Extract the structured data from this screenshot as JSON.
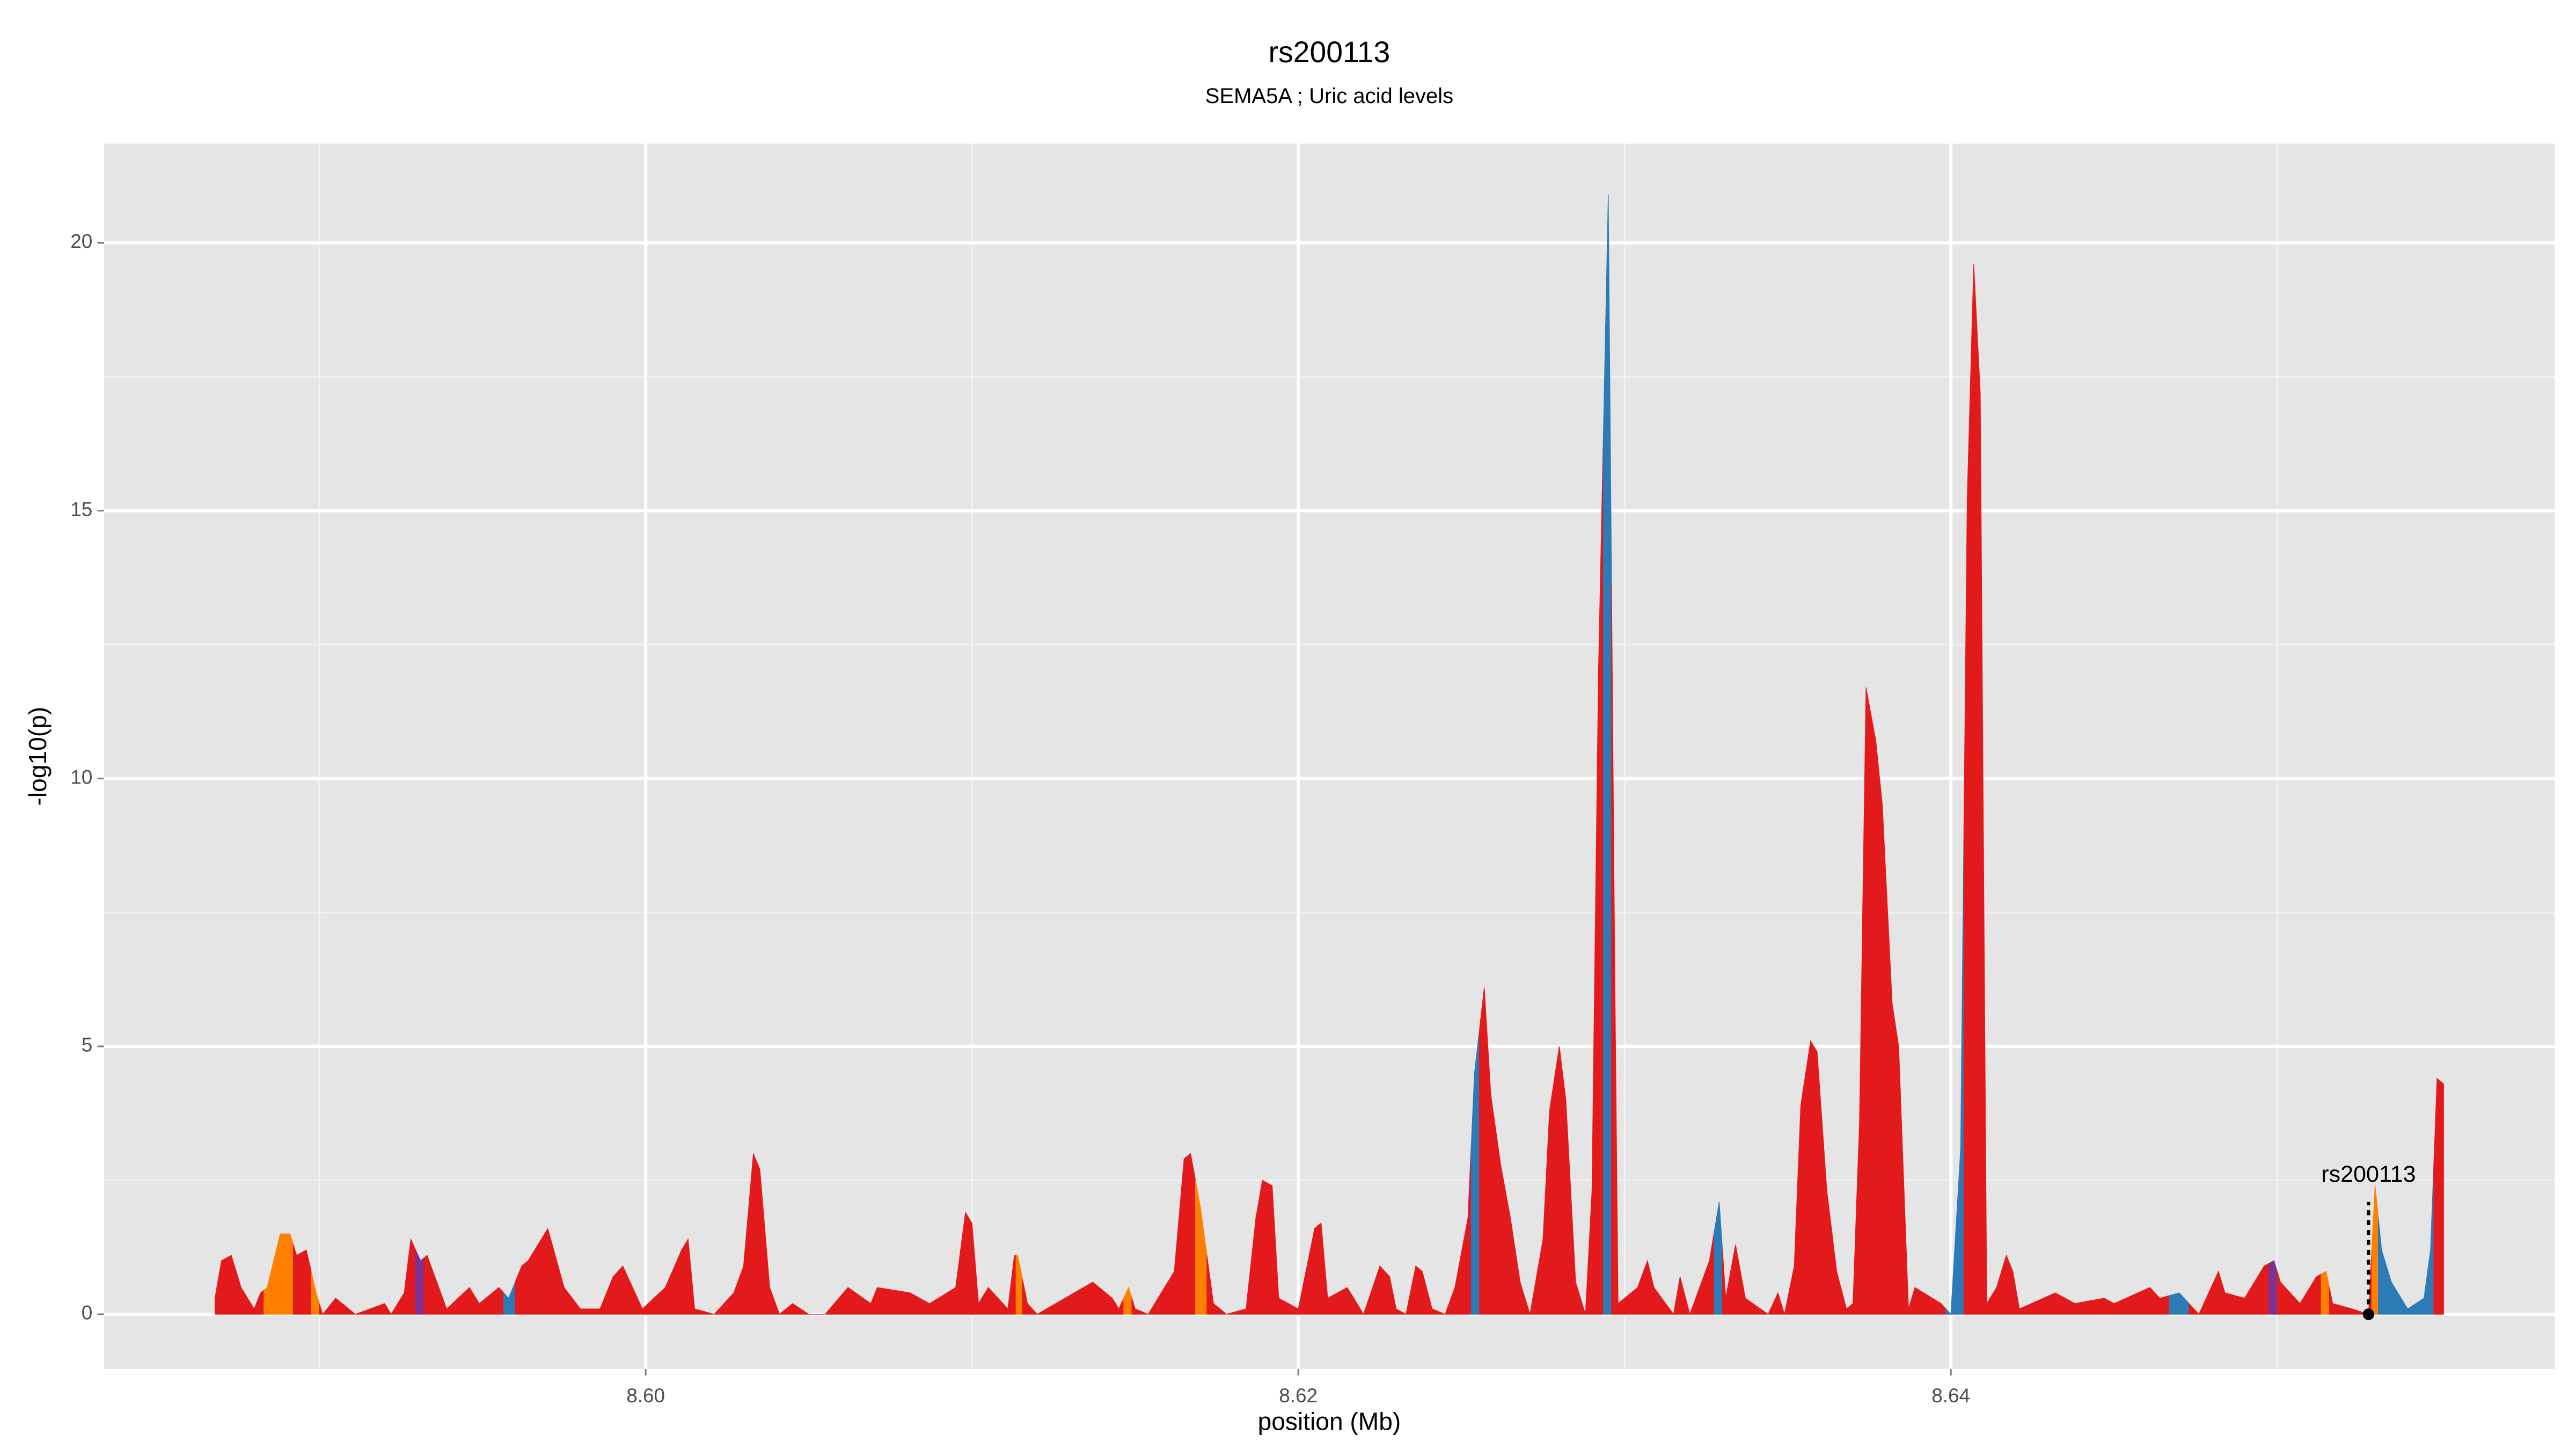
{
  "chart_data": {
    "type": "area",
    "title": "rs200113",
    "subtitle": "SEMA5A ; Uric acid levels",
    "x_label": "position (Mb)",
    "y_label": "-log10(p)",
    "xlim": [
      8.5834,
      8.6585
    ],
    "ylim": [
      -1.02,
      21.85
    ],
    "xticks": [
      {
        "value": 8.6,
        "label": "8.60"
      },
      8.62,
      8.64
    ],
    "yticks": [
      0,
      5,
      10,
      15,
      20
    ],
    "grid": true,
    "x": [
      8.5868,
      8.587,
      8.5873,
      8.5876,
      8.588,
      8.5882,
      8.5884,
      8.5888,
      8.5891,
      8.5893,
      8.5896,
      8.5899,
      8.5901,
      8.5905,
      8.5911,
      8.592,
      8.5922,
      8.5926,
      8.5928,
      8.5931,
      8.5933,
      8.5936,
      8.5939,
      8.5946,
      8.5949,
      8.5955,
      8.5958,
      8.5962,
      8.5964,
      8.597,
      8.5975,
      8.598,
      8.5986,
      8.599,
      8.5993,
      8.5999,
      8.6006,
      8.6011,
      8.6013,
      8.6015,
      8.6021,
      8.6027,
      8.603,
      8.6033,
      8.6035,
      8.6038,
      8.6041,
      8.6045,
      8.605,
      8.6055,
      8.6062,
      8.6069,
      8.6071,
      8.6081,
      8.6087,
      8.6095,
      8.6098,
      8.61,
      8.6102,
      8.6105,
      8.6111,
      8.6113,
      8.6114,
      8.6117,
      8.612,
      8.6137,
      8.6143,
      8.6145,
      8.6148,
      8.615,
      8.6154,
      8.6162,
      8.6165,
      8.6167,
      8.617,
      8.6174,
      8.6178,
      8.6184,
      8.6187,
      8.6189,
      8.6192,
      8.6194,
      8.62,
      8.6205,
      8.6207,
      8.6209,
      8.6215,
      8.622,
      8.6225,
      8.6228,
      8.623,
      8.6233,
      8.6236,
      8.6238,
      8.6241,
      8.6245,
      8.6248,
      8.6252,
      8.6254,
      8.6257,
      8.6259,
      8.6262,
      8.6265,
      8.6268,
      8.6271,
      8.6275,
      8.6277,
      8.628,
      8.6282,
      8.6285,
      8.6288,
      8.629,
      8.6292,
      8.6295,
      8.6297,
      8.6298,
      8.6304,
      8.6307,
      8.6309,
      8.6315,
      8.6317,
      8.632,
      8.6326,
      8.6329,
      8.6331,
      8.6334,
      8.6337,
      8.6344,
      8.6347,
      8.6349,
      8.6352,
      8.6354,
      8.6357,
      8.6359,
      8.6362,
      8.6365,
      8.6368,
      8.637,
      8.6372,
      8.6374,
      8.6377,
      8.6379,
      8.6382,
      8.6384,
      8.6387,
      8.6389,
      8.6397,
      8.64,
      8.6403,
      8.6405,
      8.6407,
      8.6409,
      8.6411,
      8.6414,
      8.6417,
      8.6419,
      8.6421,
      8.6432,
      8.6438,
      8.6447,
      8.645,
      8.6461,
      8.6464,
      8.647,
      8.6476,
      8.6482,
      8.6484,
      8.649,
      8.6496,
      8.6499,
      8.6501,
      8.6507,
      8.6512,
      8.6515,
      8.6517,
      8.6523,
      8.6528,
      8.653,
      8.6532,
      8.6535,
      8.654,
      8.6545,
      8.6547,
      8.6549,
      8.6551
    ],
    "values": [
      0.3,
      1.0,
      1.1,
      0.5,
      0.1,
      0.4,
      0.5,
      1.5,
      1.5,
      1.1,
      1.2,
      0.4,
      0.0,
      0.3,
      0.0,
      0.2,
      0.0,
      0.4,
      1.4,
      1.0,
      1.1,
      0.6,
      0.1,
      0.5,
      0.2,
      0.5,
      0.3,
      0.9,
      1.0,
      1.6,
      0.5,
      0.1,
      0.1,
      0.7,
      0.9,
      0.1,
      0.5,
      1.2,
      1.4,
      0.1,
      0.0,
      0.4,
      0.9,
      3.0,
      2.7,
      0.5,
      0.0,
      0.2,
      0.0,
      0.0,
      0.5,
      0.2,
      0.5,
      0.4,
      0.2,
      0.5,
      1.9,
      1.7,
      0.2,
      0.5,
      0.1,
      1.1,
      1.1,
      0.2,
      0.0,
      0.6,
      0.3,
      0.1,
      0.5,
      0.1,
      0.0,
      0.8,
      2.9,
      3.0,
      2.0,
      0.2,
      0.0,
      0.1,
      1.8,
      2.5,
      2.4,
      0.3,
      0.1,
      1.6,
      1.7,
      0.3,
      0.5,
      0.0,
      0.9,
      0.7,
      0.1,
      0.0,
      0.9,
      0.8,
      0.1,
      0.0,
      0.5,
      1.8,
      4.5,
      6.1,
      4.1,
      2.8,
      1.8,
      0.6,
      0.0,
      1.4,
      3.8,
      5.0,
      4.0,
      0.6,
      0.0,
      2.3,
      12.0,
      20.9,
      6.4,
      0.2,
      0.5,
      1.0,
      0.5,
      0.0,
      0.7,
      0.0,
      1.0,
      2.1,
      0.3,
      1.3,
      0.3,
      0.0,
      0.4,
      0.0,
      0.9,
      3.9,
      5.1,
      4.9,
      2.3,
      0.8,
      0.1,
      0.2,
      3.6,
      11.7,
      10.7,
      9.5,
      5.8,
      5.0,
      0.1,
      0.5,
      0.2,
      0.0,
      3.1,
      15.2,
      19.6,
      17.2,
      0.2,
      0.5,
      1.1,
      0.8,
      0.1,
      0.4,
      0.2,
      0.3,
      0.2,
      0.5,
      0.3,
      0.4,
      0.0,
      0.8,
      0.4,
      0.3,
      0.9,
      1.0,
      0.6,
      0.2,
      0.7,
      0.8,
      0.2,
      0.1,
      0.0,
      2.4,
      1.2,
      0.6,
      0.1,
      0.3,
      1.2,
      4.4,
      4.3
    ],
    "colors": [
      "#e31a1c",
      "#e31a1c",
      "#e31a1c",
      "#e31a1c",
      "#e31a1c",
      "#e31a1c",
      "#ff7f00",
      "#ff7f00",
      "#ff7f00",
      "#e31a1c",
      "#e31a1c",
      "#ff7f00",
      "#e31a1c",
      "#e31a1c",
      "#e31a1c",
      "#e31a1c",
      "#e31a1c",
      "#e31a1c",
      "#e31a1c",
      "#7b3294",
      "#e31a1c",
      "#e31a1c",
      "#e31a1c",
      "#e31a1c",
      "#e31a1c",
      "#e31a1c",
      "#2c7bb6",
      "#e31a1c",
      "#e31a1c",
      "#e31a1c",
      "#e31a1c",
      "#e31a1c",
      "#e31a1c",
      "#e31a1c",
      "#e31a1c",
      "#e31a1c",
      "#e31a1c",
      "#e31a1c",
      "#e31a1c",
      "#e31a1c",
      "#e31a1c",
      "#e31a1c",
      "#e31a1c",
      "#e31a1c",
      "#e31a1c",
      "#e31a1c",
      "#e31a1c",
      "#e31a1c",
      "#e31a1c",
      "#e31a1c",
      "#e31a1c",
      "#e31a1c",
      "#e31a1c",
      "#e31a1c",
      "#e31a1c",
      "#e31a1c",
      "#e31a1c",
      "#e31a1c",
      "#e31a1c",
      "#e31a1c",
      "#e31a1c",
      "#e31a1c",
      "#ff7f00",
      "#e31a1c",
      "#e31a1c",
      "#e31a1c",
      "#e31a1c",
      "#e31a1c",
      "#ff7f00",
      "#e31a1c",
      "#e31a1c",
      "#e31a1c",
      "#e31a1c",
      "#e31a1c",
      "#ff7f00",
      "#e31a1c",
      "#e31a1c",
      "#e31a1c",
      "#e31a1c",
      "#e31a1c",
      "#e31a1c",
      "#e31a1c",
      "#e31a1c",
      "#e31a1c",
      "#e31a1c",
      "#e31a1c",
      "#e31a1c",
      "#e31a1c",
      "#e31a1c",
      "#e31a1c",
      "#e31a1c",
      "#e31a1c",
      "#e31a1c",
      "#e31a1c",
      "#e31a1c",
      "#e31a1c",
      "#e31a1c",
      "#e31a1c",
      "#2c7bb6",
      "#e31a1c",
      "#e31a1c",
      "#e31a1c",
      "#e31a1c",
      "#e31a1c",
      "#e31a1c",
      "#e31a1c",
      "#e31a1c",
      "#e31a1c",
      "#e31a1c",
      "#e31a1c",
      "#e31a1c",
      "#e31a1c",
      "#e31a1c",
      "#2c7bb6",
      "#e31a1c",
      "#e31a1c",
      "#e31a1c",
      "#e31a1c",
      "#e31a1c",
      "#e31a1c",
      "#e31a1c",
      "#e31a1c",
      "#e31a1c",
      "#2c7bb6",
      "#e31a1c",
      "#e31a1c",
      "#e31a1c",
      "#e31a1c",
      "#e31a1c",
      "#e31a1c",
      "#e31a1c",
      "#e31a1c",
      "#e31a1c",
      "#e31a1c",
      "#e31a1c",
      "#e31a1c",
      "#e31a1c",
      "#e31a1c",
      "#e31a1c",
      "#e31a1c",
      "#e31a1c",
      "#e31a1c",
      "#e31a1c",
      "#e31a1c",
      "#e31a1c",
      "#e31a1c",
      "#e31a1c",
      "#2c7bb6",
      "#2c7bb6",
      "#e31a1c",
      "#e31a1c",
      "#e31a1c",
      "#e31a1c",
      "#e31a1c",
      "#e31a1c",
      "#e31a1c",
      "#e31a1c",
      "#e31a1c",
      "#e31a1c",
      "#e31a1c",
      "#e31a1c",
      "#e31a1c",
      "#e31a1c",
      "#2c7bb6",
      "#e31a1c",
      "#e31a1c",
      "#e31a1c",
      "#e31a1c",
      "#e31a1c",
      "#7b3294",
      "#e31a1c",
      "#e31a1c",
      "#e31a1c",
      "#ff7f00",
      "#e31a1c",
      "#e31a1c",
      "#e31a1c",
      "#ff7f00",
      "#2c7bb6",
      "#2c7bb6",
      "#2c7bb6",
      "#2c7bb6",
      "#2c7bb6",
      "#e31a1c",
      "#e31a1c"
    ],
    "annotations": [
      {
        "text": "rs200113",
        "x": 8.6528,
        "y": 0
      }
    ]
  }
}
